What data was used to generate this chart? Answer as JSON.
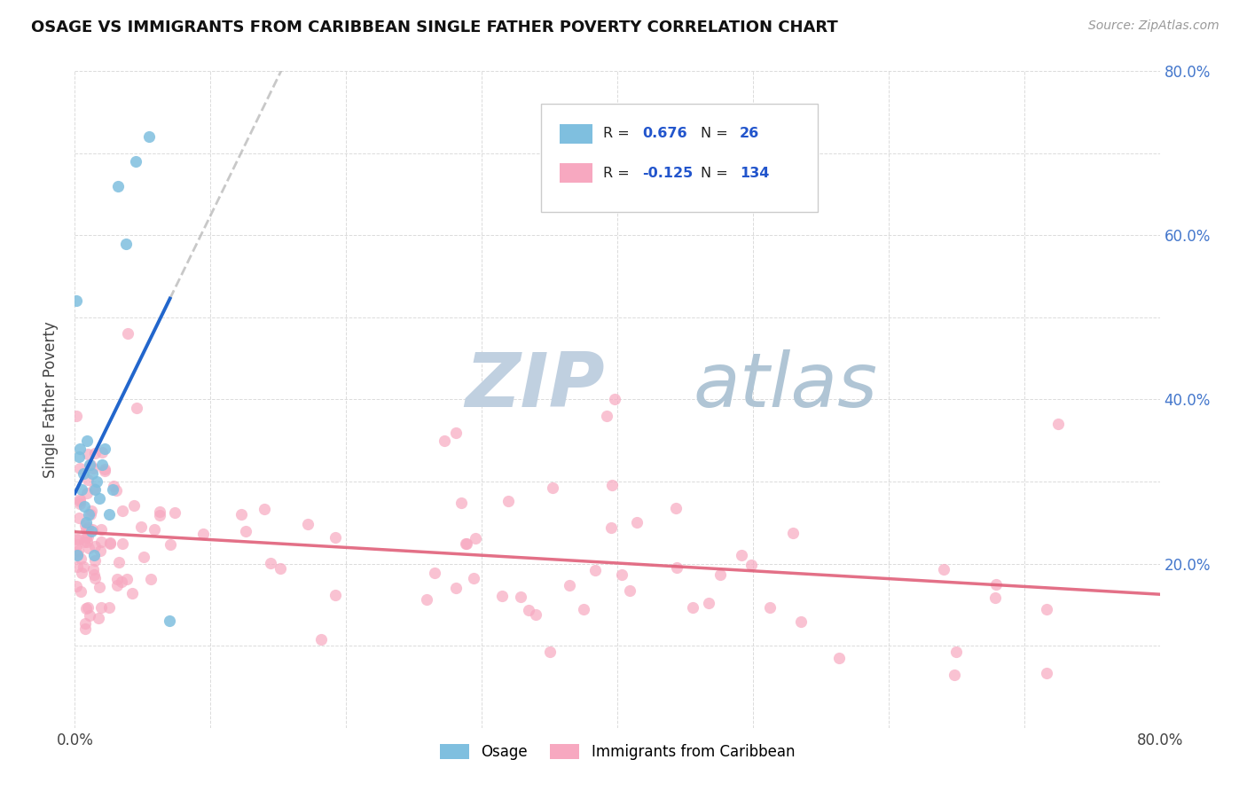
{
  "title": "OSAGE VS IMMIGRANTS FROM CARIBBEAN SINGLE FATHER POVERTY CORRELATION CHART",
  "source": "Source: ZipAtlas.com",
  "ylabel": "Single Father Poverty",
  "legend_label1": "Osage",
  "legend_label2": "Immigrants from Caribbean",
  "r1": 0.676,
  "n1": 26,
  "r2": -0.125,
  "n2": 134,
  "color1": "#7fbfdf",
  "color2": "#f7a8c0",
  "trendline1_color": "#2266cc",
  "trendline2_color": "#e0607a",
  "trendline_extend_color": "#bbbbbb",
  "background_color": "#ffffff",
  "grid_color": "#d8d8d8",
  "xlim": [
    0.0,
    0.8
  ],
  "ylim": [
    0.0,
    0.8
  ],
  "watermark_zip": "ZIP",
  "watermark_atlas": "atlas",
  "watermark_color_zip": "#c5d5e5",
  "watermark_color_atlas": "#b0c8d8",
  "figsize": [
    14.06,
    8.92
  ],
  "dpi": 100,
  "osage_x": [
    0.001,
    0.002,
    0.003,
    0.004,
    0.005,
    0.006,
    0.007,
    0.008,
    0.009,
    0.01,
    0.011,
    0.012,
    0.013,
    0.014,
    0.015,
    0.016,
    0.018,
    0.02,
    0.022,
    0.025,
    0.028,
    0.032,
    0.038,
    0.045,
    0.055,
    0.07
  ],
  "osage_y": [
    0.52,
    0.21,
    0.33,
    0.34,
    0.29,
    0.31,
    0.27,
    0.25,
    0.35,
    0.26,
    0.32,
    0.24,
    0.31,
    0.21,
    0.29,
    0.3,
    0.28,
    0.32,
    0.34,
    0.26,
    0.29,
    0.66,
    0.59,
    0.69,
    0.72,
    0.13
  ]
}
